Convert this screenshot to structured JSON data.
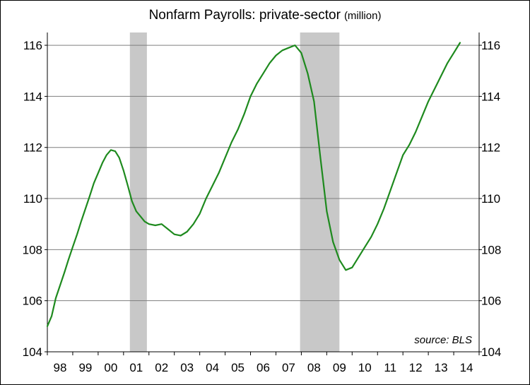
{
  "chart_data": {
    "type": "line",
    "title": "Nonfarm Payrolls: private-sector",
    "title_unit": "(million)",
    "source_note": "source: BLS",
    "ylim": [
      104,
      116.5
    ],
    "y_ticks": [
      "104",
      "106",
      "108",
      "110",
      "112",
      "114",
      "116"
    ],
    "x_ticks": [
      "98",
      "99",
      "00",
      "01",
      "02",
      "03",
      "04",
      "05",
      "06",
      "07",
      "08",
      "09",
      "10",
      "11",
      "12",
      "13",
      "14"
    ],
    "xlim": [
      1998.0,
      2015.0
    ],
    "grid": true,
    "colors": {
      "line": "#1e8a1e",
      "recession": "#c8c8c8",
      "grid": "#7f7f7f"
    },
    "recessions": [
      [
        2001.25,
        2001.92
      ],
      [
        2007.95,
        2009.5
      ]
    ],
    "series": [
      {
        "x": [
          1998.0,
          1998.17,
          1998.33,
          1998.5,
          1998.67,
          1998.83,
          1999.0,
          1999.17,
          1999.33,
          1999.5,
          1999.67,
          1999.83,
          2000.0,
          2000.17,
          2000.33,
          2000.5,
          2000.67,
          2000.83,
          2001.0,
          2001.17,
          2001.33,
          2001.5,
          2001.67,
          2001.83,
          2002.0,
          2002.25,
          2002.5,
          2002.75,
          2003.0,
          2003.25,
          2003.5,
          2003.75,
          2004.0,
          2004.25,
          2004.5,
          2004.75,
          2005.0,
          2005.25,
          2005.5,
          2005.75,
          2006.0,
          2006.25,
          2006.5,
          2006.75,
          2007.0,
          2007.25,
          2007.5,
          2007.75,
          2008.0,
          2008.25,
          2008.5,
          2008.75,
          2009.0,
          2009.25,
          2009.5,
          2009.75,
          2010.0,
          2010.25,
          2010.5,
          2010.75,
          2011.0,
          2011.25,
          2011.5,
          2011.75,
          2012.0,
          2012.25,
          2012.5,
          2012.75,
          2013.0,
          2013.25,
          2013.5,
          2013.75,
          2014.0,
          2014.25
        ],
        "values": [
          105.0,
          105.4,
          106.1,
          106.6,
          107.1,
          107.6,
          108.1,
          108.6,
          109.1,
          109.6,
          110.1,
          110.6,
          111.0,
          111.4,
          111.7,
          111.9,
          111.85,
          111.6,
          111.1,
          110.5,
          109.9,
          109.5,
          109.3,
          109.1,
          109.0,
          108.95,
          109.0,
          108.8,
          108.6,
          108.55,
          108.7,
          109.0,
          109.4,
          110.0,
          110.5,
          111.0,
          111.6,
          112.2,
          112.7,
          113.3,
          114.0,
          114.5,
          114.9,
          115.3,
          115.6,
          115.8,
          115.9,
          116.0,
          115.7,
          114.9,
          113.8,
          111.6,
          109.5,
          108.3,
          107.6,
          107.2,
          107.3,
          107.7,
          108.1,
          108.5,
          109.0,
          109.6,
          110.3,
          111.0,
          111.7,
          112.1,
          112.6,
          113.2,
          113.8,
          114.3,
          114.8,
          115.3,
          115.7,
          116.1
        ]
      }
    ]
  }
}
